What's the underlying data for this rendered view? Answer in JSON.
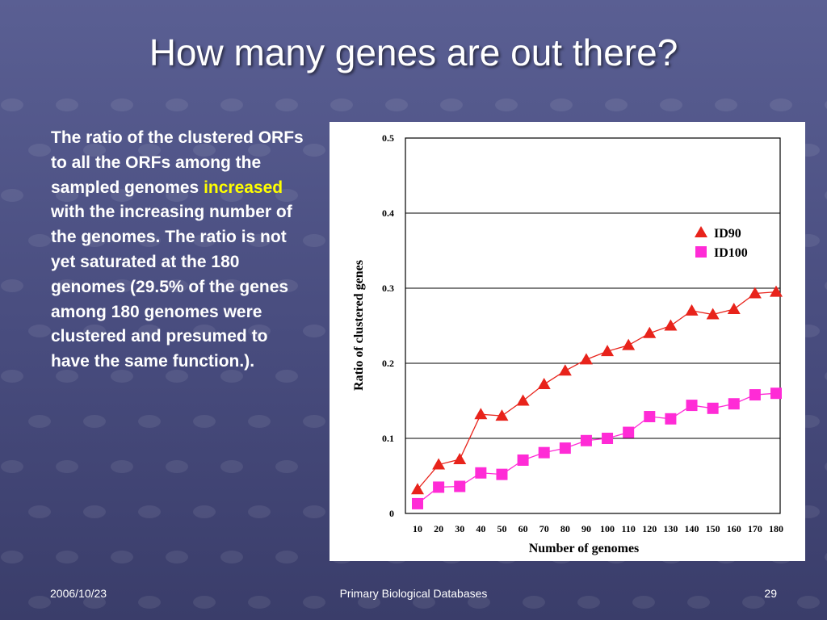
{
  "slide": {
    "title": "How many genes are out there?",
    "body": {
      "before": "The ratio of the clustered ORFs to all the ORFs among the sampled genomes ",
      "highlight": "increased",
      "after": " with the increasing number of the genomes.  The ratio is not yet saturated at the 180 genomes (29.5% of the genes among 180 genomes were clustered and presumed to have the same function.)."
    },
    "footer": {
      "date": "2006/10/23",
      "center": "Primary Biological Databases",
      "page": "29"
    }
  },
  "colors": {
    "background": "#4c5083",
    "text": "#ffffff",
    "highlight": "#ffff00",
    "series_id90": "#e8231b",
    "series_id100": "#ff2bd6"
  },
  "chart_data": {
    "type": "line",
    "xlabel": "Number of genomes",
    "ylabel": "Ratio of clustered genes",
    "x": [
      10,
      20,
      30,
      40,
      50,
      60,
      70,
      80,
      90,
      100,
      110,
      120,
      130,
      140,
      150,
      160,
      170,
      180
    ],
    "y_ticks": [
      "0",
      "0.1",
      "0.2",
      "0.3",
      "0.4",
      "0.5"
    ],
    "ylim": [
      0,
      0.5
    ],
    "grid": "horizontal",
    "legend": "right",
    "series": [
      {
        "name": "ID90",
        "marker": "triangle",
        "values": [
          0.032,
          0.065,
          0.072,
          0.132,
          0.13,
          0.15,
          0.172,
          0.19,
          0.205,
          0.216,
          0.224,
          0.24,
          0.25,
          0.27,
          0.265,
          0.272,
          0.293,
          0.295
        ]
      },
      {
        "name": "ID100",
        "marker": "square",
        "values": [
          0.013,
          0.035,
          0.036,
          0.054,
          0.052,
          0.071,
          0.081,
          0.087,
          0.097,
          0.1,
          0.108,
          0.129,
          0.126,
          0.144,
          0.14,
          0.146,
          0.158,
          0.16
        ]
      }
    ]
  }
}
